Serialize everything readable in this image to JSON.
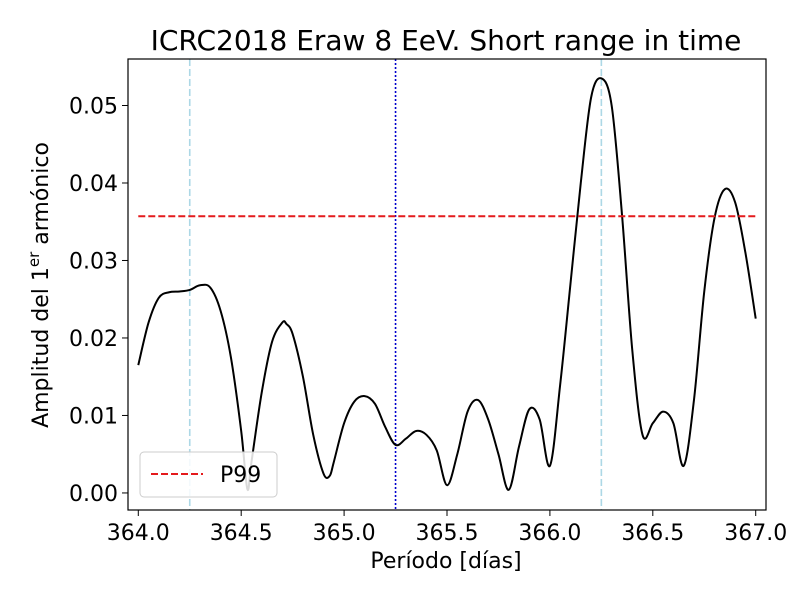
{
  "chart_data": {
    "type": "line",
    "title": "ICRC2018 Eraw 8 EeV. Short range in time",
    "xlabel": "Período [días]",
    "ylabel": {
      "prefix": "Amplitud del 1",
      "superscript": "er",
      "suffix": " armónico"
    },
    "xlim": [
      363.95,
      367.05
    ],
    "ylim": [
      -0.0022,
      0.056
    ],
    "xticks": [
      364.0,
      364.5,
      365.0,
      365.5,
      366.0,
      366.5,
      367.0
    ],
    "xtick_labels": [
      "364.0",
      "364.5",
      "365.0",
      "365.5",
      "366.0",
      "366.5",
      "367.0"
    ],
    "yticks": [
      0.0,
      0.01,
      0.02,
      0.03,
      0.04,
      0.05
    ],
    "ytick_labels": [
      "0.00",
      "0.01",
      "0.02",
      "0.03",
      "0.04",
      "0.05"
    ],
    "grid": false,
    "legend": {
      "placement": "lower-left",
      "entries": [
        {
          "label": "P99",
          "color": "#e41a1c",
          "style": "dashed"
        }
      ]
    },
    "series": [
      {
        "color": "#000000",
        "style": "solid",
        "x": [
          364.0,
          364.05,
          364.1,
          364.15,
          364.2,
          364.25,
          364.3,
          364.35,
          364.4,
          364.45,
          364.5,
          364.53,
          364.55,
          364.6,
          364.65,
          364.7,
          364.72,
          364.75,
          364.8,
          364.85,
          364.9,
          364.93,
          364.95,
          365.0,
          365.05,
          365.1,
          365.15,
          365.2,
          365.25,
          365.3,
          365.35,
          365.4,
          365.45,
          365.5,
          365.55,
          365.6,
          365.65,
          365.7,
          365.75,
          365.8,
          365.85,
          365.9,
          365.95,
          366.0,
          366.05,
          366.1,
          366.15,
          366.2,
          366.25,
          366.3,
          366.35,
          366.4,
          366.45,
          366.5,
          366.55,
          366.6,
          366.65,
          366.7,
          366.75,
          366.8,
          366.85,
          366.9,
          366.95,
          367.0
        ],
        "y": [
          0.0165,
          0.022,
          0.0252,
          0.0259,
          0.026,
          0.0262,
          0.0268,
          0.0265,
          0.0235,
          0.0175,
          0.008,
          0.0005,
          0.004,
          0.013,
          0.0195,
          0.022,
          0.0218,
          0.0205,
          0.015,
          0.0075,
          0.0025,
          0.0022,
          0.004,
          0.009,
          0.0118,
          0.0125,
          0.0115,
          0.0085,
          0.0062,
          0.007,
          0.008,
          0.0075,
          0.0055,
          0.001,
          0.005,
          0.0105,
          0.012,
          0.0095,
          0.005,
          0.0004,
          0.006,
          0.0108,
          0.0095,
          0.0035,
          0.014,
          0.027,
          0.04,
          0.051,
          0.0535,
          0.05,
          0.036,
          0.0185,
          0.0075,
          0.009,
          0.0105,
          0.009,
          0.0035,
          0.012,
          0.026,
          0.0355,
          0.0392,
          0.0375,
          0.031,
          0.0225
        ]
      }
    ],
    "hlines": [
      {
        "label": "P99",
        "y": 0.0357,
        "xmin": 364.0,
        "xmax": 367.0,
        "color": "#e41a1c",
        "style": "dashed"
      }
    ],
    "vlines": [
      {
        "x": 364.25,
        "color": "#add8e6",
        "style": "dashed"
      },
      {
        "x": 365.25,
        "color": "#0000cc",
        "style": "dotted"
      },
      {
        "x": 366.25,
        "color": "#add8e6",
        "style": "dashed"
      }
    ]
  }
}
